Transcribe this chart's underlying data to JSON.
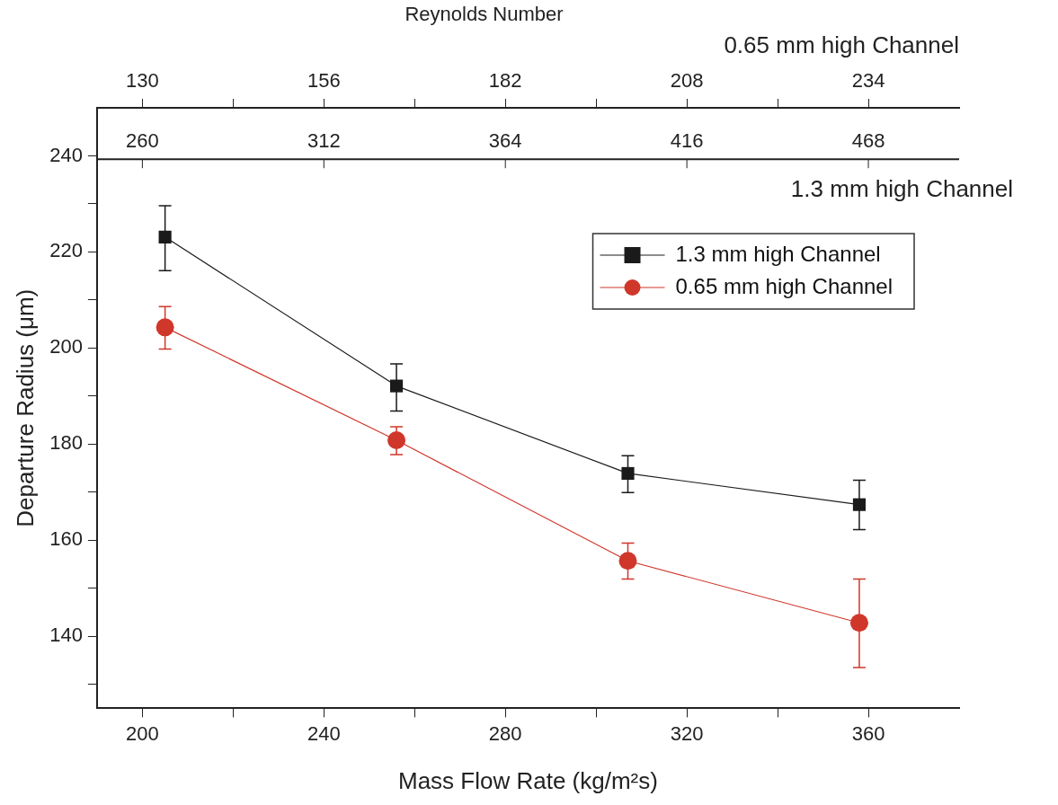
{
  "chart_data": {
    "type": "line",
    "title": "Reynolds Number",
    "xlabel": "Mass Flow Rate (kg/m²s)",
    "ylabel": "Departure Radius (μm)",
    "x2label": "0.65 mm high Channel",
    "x": [
      205,
      256,
      307,
      358
    ],
    "xlim": [
      190,
      380
    ],
    "xticks": [
      200,
      {
        "value": 220,
        "label": null
      },
      240,
      {
        "value": 260,
        "label": null
      },
      280,
      {
        "value": 300,
        "label": null
      },
      320,
      {
        "value": 340,
        "label": null
      },
      360
    ],
    "x2lim": [
      123.5,
      247
    ],
    "x2ticks": [
      130,
      {
        "value": 143,
        "label": null
      },
      156,
      {
        "value": 169,
        "label": null
      },
      182,
      {
        "value": 195,
        "label": null
      },
      208,
      {
        "value": 221,
        "label": null
      },
      234
    ],
    "ylim": [
      125,
      250
    ],
    "yticks": [
      {
        "value": 130,
        "label": null
      },
      140,
      {
        "value": 150,
        "label": null
      },
      160,
      {
        "value": 170,
        "label": null
      },
      180,
      {
        "value": 190,
        "label": null
      },
      200,
      {
        "value": 210,
        "label": null
      },
      220,
      {
        "value": 230,
        "label": null
      },
      240
    ],
    "annotations": [
      "260",
      "312",
      "364",
      "416",
      "468",
      "1.3 mm high Channel"
    ],
    "ref_lines": [
      {
        "axis": "y",
        "value": 239.3,
        "color": "#222222",
        "line_style": "solid"
      }
    ],
    "grid": false,
    "legend": "top right",
    "line_style": "solid",
    "series": [
      {
        "name": "1.3 mm high Channel",
        "color": "#1a1a1a",
        "marker": "square",
        "values": [
          223.1,
          192.1,
          173.9,
          167.4
        ],
        "errors": [
          [
            216.1,
            229.6
          ],
          [
            186.9,
            196.7
          ],
          [
            169.9,
            177.6
          ],
          [
            162.2,
            172.5
          ]
        ]
      },
      {
        "name": "0.65 mm high Channel",
        "color": "#d0372b",
        "marker": "circle",
        "values": [
          204.3,
          180.8,
          155.7,
          142.8
        ],
        "errors": [
          [
            199.8,
            208.6
          ],
          [
            177.8,
            183.6
          ],
          [
            151.9,
            159.4
          ],
          [
            133.5,
            151.9
          ]
        ]
      }
    ]
  }
}
